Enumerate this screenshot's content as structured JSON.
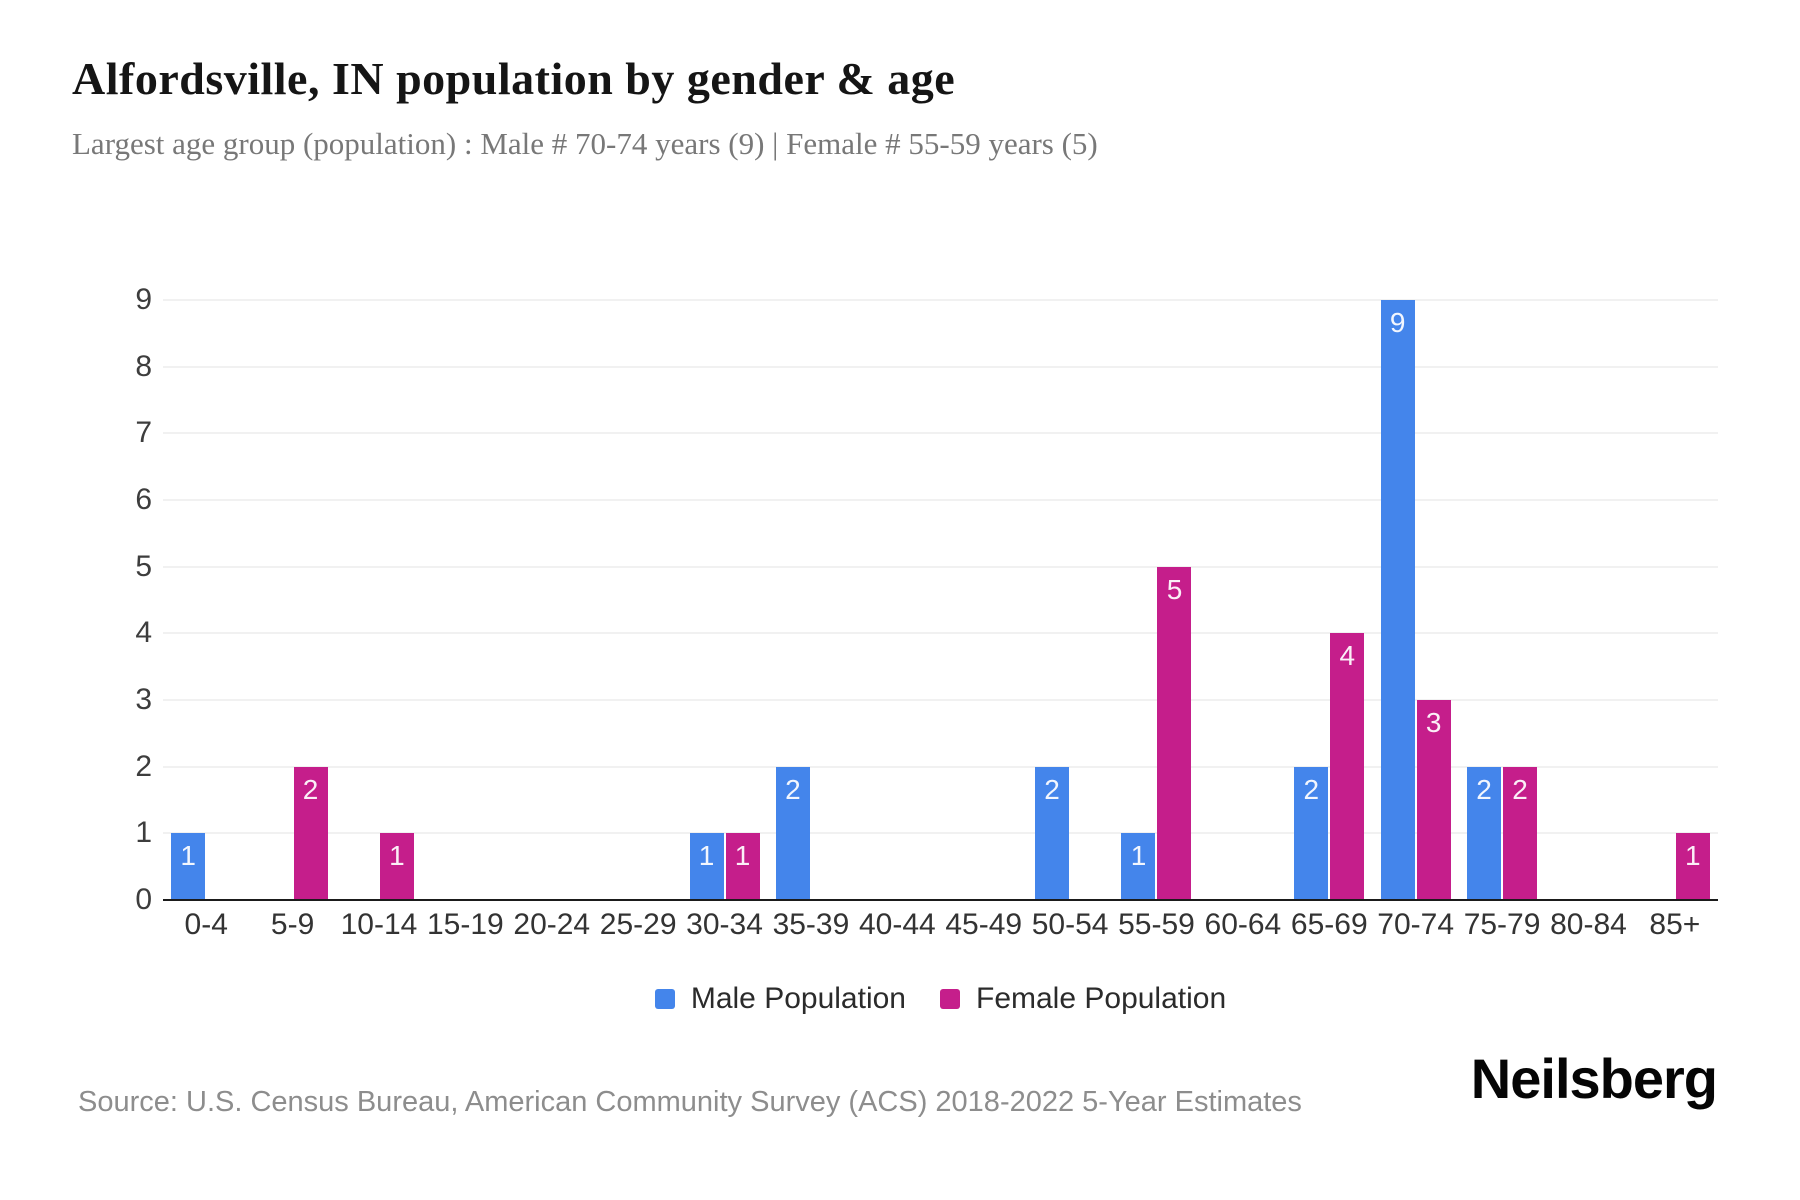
{
  "header": {
    "title": "Alfordsville, IN population by gender & age",
    "subtitle": "Largest age group (population) : Male # 70-74 years (9) | Female # 55-59 years (5)"
  },
  "chart_data": {
    "type": "bar",
    "title": "Alfordsville, IN population by gender & age",
    "xlabel": "",
    "ylabel": "",
    "categories": [
      "0-4",
      "5-9",
      "10-14",
      "15-19",
      "20-24",
      "25-29",
      "30-34",
      "35-39",
      "40-44",
      "45-49",
      "50-54",
      "55-59",
      "60-64",
      "65-69",
      "70-74",
      "75-79",
      "80-84",
      "85+"
    ],
    "series": [
      {
        "key": "male",
        "name": "Male Population",
        "color": "#4485eb",
        "values": [
          1,
          0,
          0,
          0,
          0,
          0,
          1,
          2,
          0,
          0,
          2,
          1,
          0,
          2,
          9,
          2,
          0,
          0
        ]
      },
      {
        "key": "female",
        "name": "Female Population",
        "color": "#c51e8b",
        "values": [
          0,
          2,
          1,
          0,
          0,
          0,
          1,
          0,
          0,
          0,
          0,
          5,
          0,
          4,
          3,
          2,
          0,
          1
        ]
      }
    ],
    "ylim": [
      0,
      9
    ],
    "yticks": [
      0,
      1,
      2,
      3,
      4,
      5,
      6,
      7,
      8,
      9
    ],
    "grid": "horizontal-light",
    "bar_value_labels": "inside-top-white",
    "legend_position": "bottom-center"
  },
  "footer": {
    "source": "Source: U.S. Census Bureau, American Community Survey (ACS) 2018-2022 5-Year Estimates",
    "brand": "Neilsberg"
  }
}
